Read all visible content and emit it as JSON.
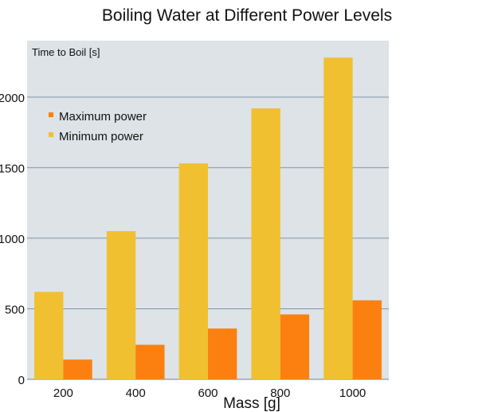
{
  "chart_data": {
    "type": "bar",
    "title": "Boiling Water at Different Power Levels",
    "xlabel": "Mass [g]",
    "ylabel": "Time to Boil [s]",
    "categories": [
      "200",
      "400",
      "600",
      "800",
      "1000"
    ],
    "series": [
      {
        "name": "Minimum power",
        "color": "#f0c030",
        "values": [
          620,
          1050,
          1530,
          1920,
          2280
        ]
      },
      {
        "name": "Maximum power",
        "color": "#fb8010",
        "values": [
          140,
          245,
          360,
          460,
          560
        ]
      }
    ],
    "ylim": [
      0,
      2400
    ],
    "yticks": [
      0,
      500,
      1000,
      1500,
      2000
    ],
    "grid": true,
    "legend_position": "top-left",
    "legend_order": [
      "Maximum power",
      "Minimum power"
    ],
    "background": "#dde3e6",
    "grid_color": "#7f97ad"
  }
}
